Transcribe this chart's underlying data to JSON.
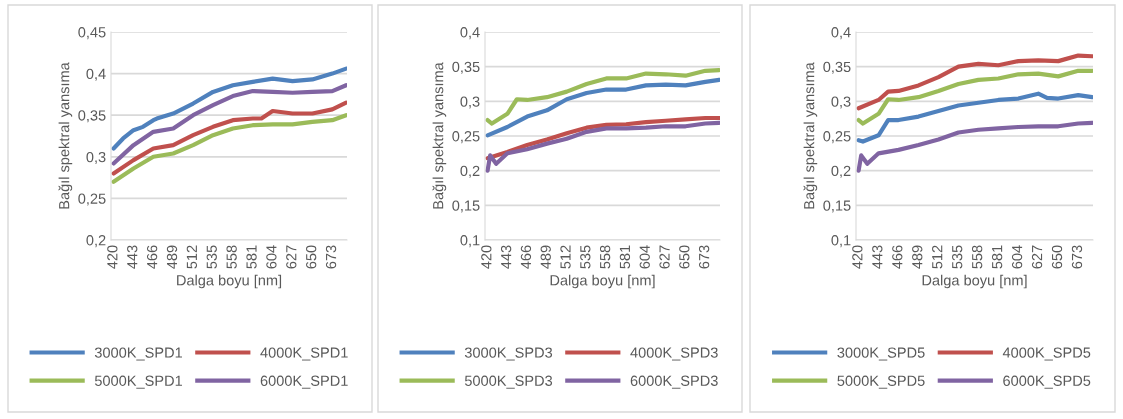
{
  "chart_data": [
    {
      "type": "line",
      "xlabel": "Dalga boyu [nm]",
      "ylabel": "Bağıl spektral yansıma",
      "xlim": [
        417,
        690
      ],
      "xticks": [
        420,
        443,
        466,
        489,
        512,
        535,
        558,
        581,
        604,
        627,
        650,
        673
      ],
      "ylim": [
        0.2,
        0.45
      ],
      "yticks": [
        {
          "value": 0.2,
          "label": "0,2"
        },
        {
          "value": 0.25,
          "label": "0,25"
        },
        {
          "value": 0.3,
          "label": "0,3"
        },
        {
          "value": 0.35,
          "label": "0,35"
        },
        {
          "value": 0.4,
          "label": "0,4"
        },
        {
          "value": 0.45,
          "label": "0,45"
        }
      ],
      "grid": "y",
      "legend": "bottom",
      "marker": "none",
      "line_style": "solid",
      "series": [
        {
          "name": "3000K_SPD1",
          "color": "#4f81bd",
          "x": [
            420,
            431,
            443,
            454,
            466,
            470,
            489,
            512,
            535,
            558,
            581,
            604,
            627,
            650,
            673,
            689
          ],
          "values": [
            0.31,
            0.322,
            0.332,
            0.336,
            0.344,
            0.346,
            0.352,
            0.364,
            0.378,
            0.386,
            0.39,
            0.394,
            0.391,
            0.393,
            0.4,
            0.406
          ]
        },
        {
          "name": "4000K_SPD1",
          "color": "#c0504d",
          "x": [
            420,
            443,
            466,
            489,
            512,
            535,
            558,
            581,
            591,
            604,
            627,
            650,
            673,
            689
          ],
          "values": [
            0.28,
            0.296,
            0.31,
            0.314,
            0.326,
            0.336,
            0.344,
            0.346,
            0.346,
            0.355,
            0.352,
            0.352,
            0.357,
            0.365
          ]
        },
        {
          "name": "5000K_SPD1",
          "color": "#9bbb59",
          "x": [
            420,
            443,
            466,
            489,
            512,
            535,
            558,
            581,
            604,
            627,
            650,
            673,
            689
          ],
          "values": [
            0.27,
            0.286,
            0.3,
            0.304,
            0.314,
            0.326,
            0.334,
            0.338,
            0.339,
            0.339,
            0.342,
            0.344,
            0.35
          ]
        },
        {
          "name": "6000K_SPD1",
          "color": "#8064a2",
          "x": [
            420,
            443,
            466,
            489,
            512,
            535,
            558,
            581,
            604,
            627,
            650,
            673,
            689
          ],
          "values": [
            0.292,
            0.314,
            0.33,
            0.334,
            0.35,
            0.362,
            0.373,
            0.379,
            0.378,
            0.377,
            0.378,
            0.379,
            0.386
          ]
        }
      ]
    },
    {
      "type": "line",
      "xlabel": "Dalga boyu [nm]",
      "ylabel": "Bağıl spektral yansıma",
      "xlim": [
        417,
        690
      ],
      "xticks": [
        420,
        443,
        466,
        489,
        512,
        535,
        558,
        581,
        604,
        627,
        650,
        673
      ],
      "ylim": [
        0.1,
        0.4
      ],
      "yticks": [
        {
          "value": 0.1,
          "label": "0,1"
        },
        {
          "value": 0.15,
          "label": "0,15"
        },
        {
          "value": 0.2,
          "label": "0,2"
        },
        {
          "value": 0.25,
          "label": "0,25"
        },
        {
          "value": 0.3,
          "label": "0,3"
        },
        {
          "value": 0.35,
          "label": "0,35"
        },
        {
          "value": 0.4,
          "label": "0,4"
        }
      ],
      "grid": "y",
      "legend": "bottom",
      "marker": "none",
      "line_style": "solid",
      "series": [
        {
          "name": "3000K_SPD3",
          "color": "#4f81bd",
          "x": [
            420,
            443,
            466,
            489,
            512,
            535,
            558,
            581,
            604,
            627,
            650,
            673,
            689
          ],
          "values": [
            0.251,
            0.263,
            0.278,
            0.287,
            0.303,
            0.312,
            0.317,
            0.317,
            0.323,
            0.324,
            0.323,
            0.328,
            0.331
          ]
        },
        {
          "name": "4000K_SPD3",
          "color": "#c0504d",
          "x": [
            420,
            443,
            466,
            489,
            512,
            535,
            558,
            581,
            604,
            627,
            650,
            673,
            689
          ],
          "values": [
            0.218,
            0.227,
            0.237,
            0.245,
            0.254,
            0.262,
            0.266,
            0.267,
            0.27,
            0.272,
            0.274,
            0.276,
            0.276
          ]
        },
        {
          "name": "5000K_SPD3",
          "color": "#9bbb59",
          "x": [
            420,
            425,
            443,
            454,
            466,
            489,
            512,
            535,
            558,
            581,
            604,
            627,
            650,
            673,
            689
          ],
          "values": [
            0.273,
            0.268,
            0.282,
            0.303,
            0.302,
            0.306,
            0.314,
            0.325,
            0.333,
            0.333,
            0.34,
            0.339,
            0.337,
            0.344,
            0.345
          ]
        },
        {
          "name": "6000K_SPD3",
          "color": "#8064a2",
          "x": [
            420,
            423,
            430,
            443,
            466,
            489,
            512,
            535,
            558,
            581,
            604,
            627,
            650,
            673,
            689
          ],
          "values": [
            0.2,
            0.222,
            0.21,
            0.225,
            0.231,
            0.239,
            0.246,
            0.256,
            0.261,
            0.261,
            0.262,
            0.264,
            0.264,
            0.268,
            0.269
          ]
        }
      ]
    },
    {
      "type": "line",
      "xlabel": "Dalga boyu [nm]",
      "ylabel": "Bağıl spektral yansıma",
      "xlim": [
        417,
        690
      ],
      "xticks": [
        420,
        443,
        466,
        489,
        512,
        535,
        558,
        581,
        604,
        627,
        650,
        673
      ],
      "ylim": [
        0.1,
        0.4
      ],
      "yticks": [
        {
          "value": 0.1,
          "label": "0,1"
        },
        {
          "value": 0.15,
          "label": "0,15"
        },
        {
          "value": 0.2,
          "label": "0,2"
        },
        {
          "value": 0.25,
          "label": "0,25"
        },
        {
          "value": 0.3,
          "label": "0,3"
        },
        {
          "value": 0.35,
          "label": "0,35"
        },
        {
          "value": 0.4,
          "label": "0,4"
        }
      ],
      "grid": "y",
      "legend": "bottom",
      "marker": "none",
      "line_style": "solid",
      "series": [
        {
          "name": "3000K_SPD5",
          "color": "#4f81bd",
          "x": [
            420,
            425,
            443,
            454,
            466,
            489,
            512,
            535,
            558,
            581,
            604,
            627,
            637,
            650,
            673,
            689
          ],
          "values": [
            0.244,
            0.242,
            0.251,
            0.273,
            0.273,
            0.278,
            0.286,
            0.294,
            0.298,
            0.302,
            0.304,
            0.311,
            0.305,
            0.304,
            0.309,
            0.306
          ]
        },
        {
          "name": "4000K_SPD5",
          "color": "#c0504d",
          "x": [
            420,
            443,
            454,
            466,
            489,
            512,
            535,
            558,
            581,
            604,
            627,
            650,
            673,
            689
          ],
          "values": [
            0.29,
            0.302,
            0.314,
            0.315,
            0.323,
            0.335,
            0.35,
            0.354,
            0.352,
            0.358,
            0.359,
            0.358,
            0.366,
            0.365
          ]
        },
        {
          "name": "5000K_SPD5",
          "color": "#9bbb59",
          "x": [
            420,
            425,
            443,
            454,
            466,
            489,
            512,
            535,
            558,
            581,
            604,
            627,
            650,
            673,
            689
          ],
          "values": [
            0.273,
            0.268,
            0.282,
            0.303,
            0.302,
            0.306,
            0.315,
            0.325,
            0.331,
            0.333,
            0.339,
            0.34,
            0.336,
            0.344,
            0.344
          ]
        },
        {
          "name": "6000K_SPD5",
          "color": "#8064a2",
          "x": [
            420,
            423,
            430,
            443,
            466,
            489,
            512,
            535,
            558,
            581,
            604,
            627,
            650,
            673,
            689
          ],
          "values": [
            0.2,
            0.222,
            0.21,
            0.225,
            0.23,
            0.237,
            0.245,
            0.255,
            0.259,
            0.261,
            0.263,
            0.264,
            0.264,
            0.268,
            0.269
          ]
        }
      ]
    }
  ]
}
